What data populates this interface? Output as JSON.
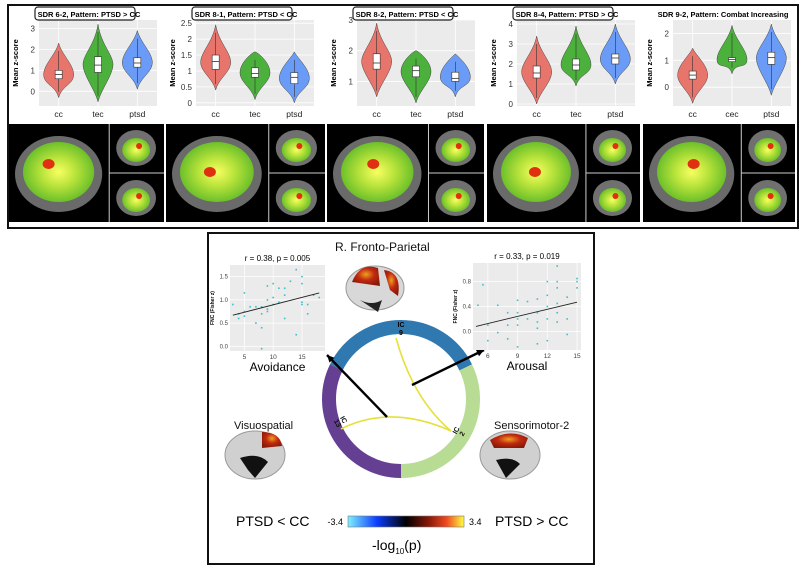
{
  "chart_data": [
    {
      "type": "violin",
      "title": "SDR 6-2, Pattern: PTSD > CC",
      "title_boxed": true,
      "ylabel": "Mean z-score",
      "ylim": [
        -0.7,
        3.4
      ],
      "yticks": [
        0,
        1,
        2,
        3
      ],
      "grid": true,
      "categories": [
        "cc",
        "tec",
        "ptsd"
      ],
      "colors": [
        "#e8756b",
        "#4cb03c",
        "#6a9cf7"
      ],
      "series": [
        {
          "median": 0.8,
          "q1": 0.6,
          "q3": 1.0,
          "min": -0.3,
          "max": 2.3
        },
        {
          "median": 1.25,
          "q1": 0.9,
          "q3": 1.65,
          "min": -0.5,
          "max": 3.2
        },
        {
          "median": 1.35,
          "q1": 1.15,
          "q3": 1.6,
          "min": 0.1,
          "max": 2.9
        }
      ]
    },
    {
      "type": "violin",
      "title": "SDR 8-1, Pattern: PTSD < CC",
      "title_boxed": true,
      "ylabel": "Mean z-score",
      "ylim": [
        -0.1,
        2.6
      ],
      "yticks": [
        0.0,
        0.5,
        1.0,
        1.5,
        2.0,
        2.5
      ],
      "grid": true,
      "categories": [
        "cc",
        "tec",
        "ptsd"
      ],
      "colors": [
        "#e8756b",
        "#4cb03c",
        "#6a9cf7"
      ],
      "series": [
        {
          "median": 1.3,
          "q1": 1.05,
          "q3": 1.5,
          "min": 0.4,
          "max": 2.45
        },
        {
          "median": 0.92,
          "q1": 0.8,
          "q3": 1.1,
          "min": 0.1,
          "max": 1.6
        },
        {
          "median": 0.8,
          "q1": 0.6,
          "q3": 0.95,
          "min": 0.0,
          "max": 1.6
        }
      ]
    },
    {
      "type": "violin",
      "title": "SDR 8-2, Pattern: PTSD < CC",
      "title_boxed": true,
      "ylabel": "Mean z-score",
      "ylim": [
        0.2,
        3.0
      ],
      "yticks": [
        1,
        2,
        3
      ],
      "grid": true,
      "categories": [
        "cc",
        "tec",
        "ptsd"
      ],
      "colors": [
        "#e8756b",
        "#4cb03c",
        "#6a9cf7"
      ],
      "series": [
        {
          "median": 1.6,
          "q1": 1.4,
          "q3": 1.9,
          "min": 0.5,
          "max": 2.9
        },
        {
          "median": 1.35,
          "q1": 1.15,
          "q3": 1.5,
          "min": 0.3,
          "max": 2.0
        },
        {
          "median": 1.1,
          "q1": 1.0,
          "q3": 1.3,
          "min": 0.5,
          "max": 1.9
        }
      ]
    },
    {
      "type": "violin",
      "title": "SDR 8-4, Pattern: PTSD > CC",
      "title_boxed": true,
      "ylabel": "Mean z-score",
      "ylim": [
        -0.1,
        4.2
      ],
      "yticks": [
        0,
        1,
        2,
        3,
        4
      ],
      "grid": true,
      "categories": [
        "cc",
        "tec",
        "ptsd"
      ],
      "colors": [
        "#e8756b",
        "#4cb03c",
        "#6a9cf7"
      ],
      "series": [
        {
          "median": 1.55,
          "q1": 1.3,
          "q3": 1.9,
          "min": 0.0,
          "max": 3.4
        },
        {
          "median": 1.95,
          "q1": 1.7,
          "q3": 2.25,
          "min": 0.9,
          "max": 3.9
        },
        {
          "median": 2.3,
          "q1": 2.0,
          "q3": 2.5,
          "min": 1.0,
          "max": 4.0
        }
      ]
    },
    {
      "type": "violin",
      "title": "SDR 9-2, Pattern: Combat Increasing",
      "title_boxed": false,
      "ylabel": "Mean z-score",
      "ylim": [
        -0.7,
        2.5
      ],
      "yticks": [
        0,
        1,
        2
      ],
      "grid": true,
      "categories": [
        "cc",
        "cec",
        "ptsd"
      ],
      "colors": [
        "#e8756b",
        "#4cb03c",
        "#6a9cf7"
      ],
      "series": [
        {
          "median": 0.45,
          "q1": 0.3,
          "q3": 0.6,
          "min": -0.6,
          "max": 1.45
        },
        {
          "median": 1.03,
          "q1": 0.95,
          "q3": 1.1,
          "min": 0.5,
          "max": 2.3
        },
        {
          "median": 1.1,
          "q1": 0.85,
          "q3": 1.3,
          "min": -0.3,
          "max": 2.35
        }
      ]
    },
    {
      "type": "scatter",
      "title": "r = 0.38, p = 0.005",
      "xlabel": "Avoidance",
      "ylabel": "FNC (Fisher z)",
      "xlim": [
        2.5,
        19
      ],
      "ylim": [
        -0.1,
        1.75
      ],
      "xticks": [
        5,
        10,
        15
      ],
      "yticks": [
        "0.0",
        "0.5",
        "1.0",
        "1.5"
      ],
      "grid": true,
      "color": "#3cc0c8",
      "fit_line": [
        [
          3,
          0.67
        ],
        [
          18,
          1.15
        ]
      ],
      "points": [
        [
          3,
          0.9
        ],
        [
          4,
          0.7
        ],
        [
          4,
          0.6
        ],
        [
          5,
          1.15
        ],
        [
          5,
          0.75
        ],
        [
          5,
          0.65
        ],
        [
          6,
          0.85
        ],
        [
          7,
          0.85
        ],
        [
          7,
          0.5
        ],
        [
          8,
          0.85
        ],
        [
          8,
          0.7
        ],
        [
          8,
          0.4
        ],
        [
          8,
          -0.05
        ],
        [
          9,
          1.3
        ],
        [
          9,
          0.8
        ],
        [
          9,
          0.75
        ],
        [
          9,
          1.0
        ],
        [
          10,
          1.35
        ],
        [
          10,
          1.05
        ],
        [
          10,
          0.9
        ],
        [
          11,
          1.25
        ],
        [
          11,
          0.95
        ],
        [
          12,
          1.25
        ],
        [
          12,
          1.1
        ],
        [
          12,
          0.6
        ],
        [
          13,
          1.4
        ],
        [
          14,
          1.65
        ],
        [
          14,
          0.25
        ],
        [
          15,
          1.5
        ],
        [
          15,
          1.35
        ],
        [
          15,
          0.95
        ],
        [
          15,
          0.9
        ],
        [
          16,
          0.7
        ],
        [
          16,
          0.9
        ],
        [
          17,
          1.1
        ],
        [
          18,
          1.05
        ]
      ]
    },
    {
      "type": "scatter",
      "title": "r = 0.33, p = 0.019",
      "xlabel": "Arousal",
      "ylabel": "FNC (Fisher z)",
      "xlim": [
        4.5,
        15.4
      ],
      "ylim": [
        -0.3,
        1.1
      ],
      "xticks": [
        6,
        9,
        12,
        15
      ],
      "yticks": [
        "0.0",
        "0.4",
        "0.8"
      ],
      "grid": true,
      "color": "#3cc0c8",
      "fit_line": [
        [
          4.8,
          0.08
        ],
        [
          15,
          0.47
        ]
      ],
      "points": [
        [
          5,
          0.42
        ],
        [
          5.5,
          0.75
        ],
        [
          6,
          0.1
        ],
        [
          6,
          -0.15
        ],
        [
          7,
          0.42
        ],
        [
          7,
          -0.02
        ],
        [
          8,
          0.3
        ],
        [
          8,
          0.1
        ],
        [
          8,
          -0.12
        ],
        [
          9,
          0.5
        ],
        [
          9,
          0.3
        ],
        [
          9,
          0.2
        ],
        [
          9,
          0.1
        ],
        [
          9,
          -0.25
        ],
        [
          10,
          0.48
        ],
        [
          10,
          0.2
        ],
        [
          11,
          0.52
        ],
        [
          11,
          0.3
        ],
        [
          11,
          0.15
        ],
        [
          11,
          0.05
        ],
        [
          11,
          -0.2
        ],
        [
          12,
          0.8
        ],
        [
          12,
          0.58
        ],
        [
          12,
          0.4
        ],
        [
          12,
          0.2
        ],
        [
          12,
          -0.15
        ],
        [
          13,
          1.05
        ],
        [
          13,
          0.8
        ],
        [
          13,
          0.7
        ],
        [
          13,
          0.45
        ],
        [
          13,
          0.3
        ],
        [
          13,
          0.15
        ],
        [
          14,
          0.55
        ],
        [
          14,
          0.2
        ],
        [
          14,
          -0.05
        ],
        [
          15,
          0.85
        ],
        [
          15,
          0.8
        ],
        [
          15,
          0.7
        ]
      ]
    }
  ],
  "connectogram": {
    "segments": [
      {
        "label": "IC\n9",
        "name": "R. Fronto-Parietal",
        "color": "#2f78b0"
      },
      {
        "label": "IC\n2",
        "name": "Sensorimotor-2",
        "color": "#b8dc94"
      },
      {
        "label": "IC\n13",
        "name": "Visuospatial",
        "color": "#654092"
      }
    ],
    "labels": {
      "top": "R. Fronto-Parietal",
      "left": "Visuospatial",
      "right": "Sensorimotor-2",
      "ic9": "IC",
      "ic9n": "9",
      "ic2": "IC",
      "ic2n": "2",
      "ic13": "IC",
      "ic13n": "13"
    },
    "link_color": "#e6e03a"
  },
  "colorbar": {
    "min_label": "-3.4",
    "max_label": "3.4",
    "left_label": "PTSD < CC",
    "right_label": "PTSD > CC",
    "title_base": "-log",
    "title_sub": "10",
    "title_rest": "(p)"
  }
}
